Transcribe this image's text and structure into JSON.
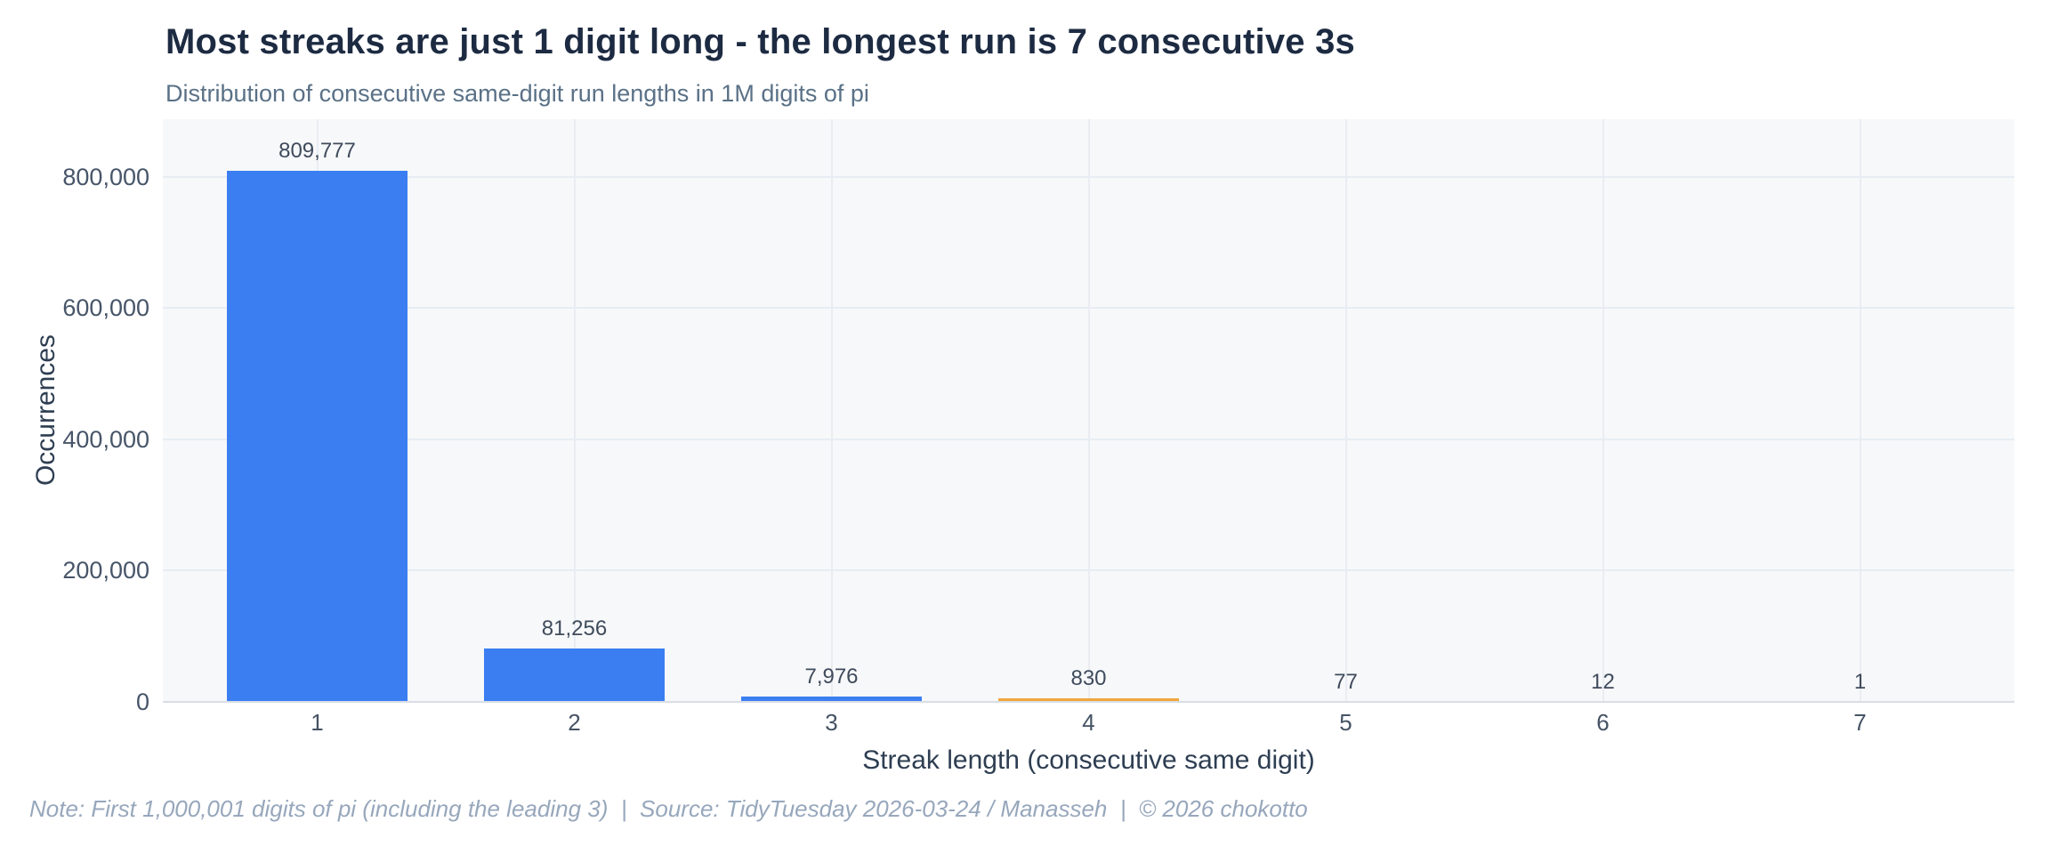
{
  "header": {
    "title": "Most streaks are just 1 digit long - the longest run is 7 consecutive 3s",
    "subtitle": "Distribution of consecutive same-digit run lengths in 1M digits of pi"
  },
  "footer": {
    "text": "Note: First 1,000,001 digits of pi (including the leading 3)  |  Source: TidyTuesday 2026-03-24 / Manasseh  |  © 2026 chokotto"
  },
  "chart_data": {
    "type": "bar",
    "title": "Most streaks are just 1 digit long - the longest run is 7 consecutive 3s",
    "subtitle": "Distribution of consecutive same-digit run lengths in 1M digits of pi",
    "categories": [
      "1",
      "2",
      "3",
      "4",
      "5",
      "6",
      "7"
    ],
    "values": [
      809777,
      81256,
      7976,
      830,
      77,
      12,
      1
    ],
    "value_labels": [
      "809,777",
      "81,256",
      "7,976",
      "830",
      "77",
      "12",
      "1"
    ],
    "bar_colors": [
      "#3b7ef2",
      "#3b7ef2",
      "#3b7ef2",
      "#f0a63c",
      "#3b7ef2",
      "#3b7ef2",
      "#3b7ef2"
    ],
    "highlight_index": 3,
    "xlabel": "Streak length (consecutive same digit)",
    "ylabel": "Occurrences",
    "ylim": [
      0,
      888000
    ],
    "yticks": [
      {
        "value": 0,
        "label": "0"
      },
      {
        "value": 200000,
        "label": "200,000"
      },
      {
        "value": 400000,
        "label": "400,000"
      },
      {
        "value": 600000,
        "label": "600,000"
      },
      {
        "value": 800000,
        "label": "800,000"
      }
    ],
    "grid": true,
    "legend": false,
    "colors": {
      "bar_blue": "#3b7ef2",
      "bar_orange": "#f0a63c",
      "plot_bg": "#f7f8fa",
      "gridline": "#e7edf3",
      "axis_line": "#d8dee5",
      "title": "#1d2b42",
      "subtitle": "#5a7187",
      "tick": "#455364",
      "value_label": "#3f4b5c",
      "axis_title": "#2e3e52",
      "footer": "#97a7bc"
    }
  }
}
